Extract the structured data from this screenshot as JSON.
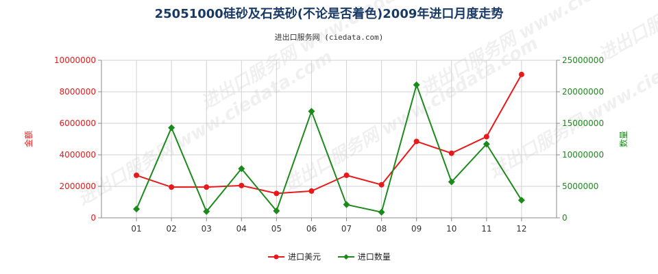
{
  "chart_data": {
    "type": "line",
    "title": "25051000硅砂及石英砂(不论是否着色)2009年进口月度走势",
    "subtitle": "进出口服务网 (ciedata.com)",
    "watermark": "进出口服务网 www.ciedata.com",
    "categories": [
      "01",
      "02",
      "03",
      "04",
      "05",
      "06",
      "07",
      "08",
      "09",
      "10",
      "11",
      "12"
    ],
    "series": [
      {
        "name": "进口美元",
        "axis": "left",
        "color": "#e8191a",
        "values": [
          2700000,
          1950000,
          1950000,
          2050000,
          1550000,
          1700000,
          2700000,
          2100000,
          4850000,
          4100000,
          5150000,
          9100000
        ]
      },
      {
        "name": "进口数量",
        "axis": "right",
        "color": "#1a8a1a",
        "values": [
          1400000,
          14300000,
          1000000,
          7800000,
          1100000,
          16900000,
          2100000,
          900000,
          21100000,
          5700000,
          11700000,
          2800000
        ]
      }
    ],
    "y_left": {
      "label": "金额",
      "range": [
        0,
        10000000
      ],
      "ticks": [
        "0",
        "2000000",
        "4000000",
        "6000000",
        "8000000",
        "10000000"
      ],
      "color": "#e8191a"
    },
    "y_right": {
      "label": "数量",
      "range": [
        0,
        25000000
      ],
      "ticks": [
        "0",
        "5000000",
        "10000000",
        "15000000",
        "20000000",
        "25000000"
      ],
      "color": "#1a8a1a"
    },
    "grid": true,
    "legend_position": "bottom-center"
  }
}
